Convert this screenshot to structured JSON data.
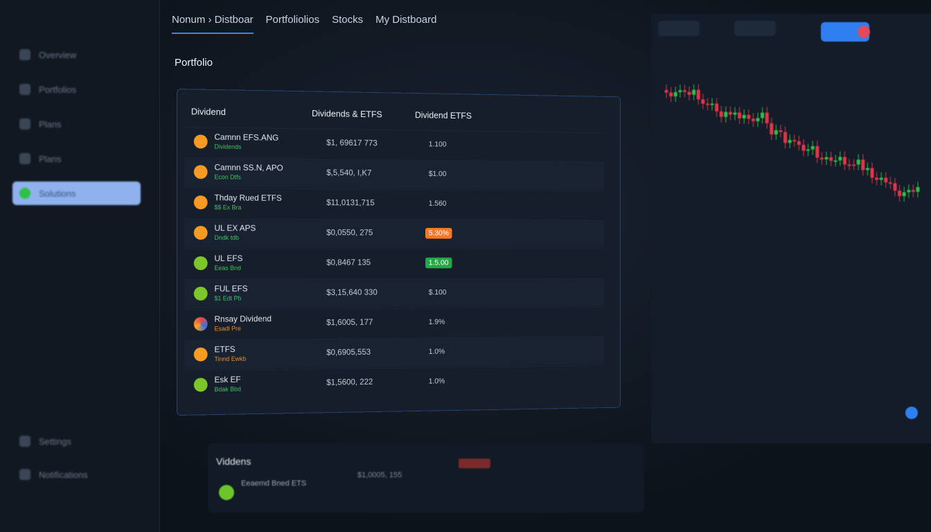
{
  "sidebar": {
    "items": [
      "Overview",
      "Portfolios",
      "Plans",
      "Plans",
      "Solutions"
    ],
    "footer": [
      "Settings",
      "Notifications"
    ]
  },
  "tabs": [
    "Nonum › Distboar",
    "Portfoliolios",
    "Stocks",
    "My Distboard"
  ],
  "header": {
    "title": "Portfolio"
  },
  "table": {
    "columns": [
      "Dividend",
      "Dividends & ETFS",
      "Dividend ETFS"
    ],
    "rows": [
      {
        "name": "Camnn EFS.ANG",
        "sub": "Dividends",
        "amount": "$1, 69617 773",
        "rate": "1.100"
      },
      {
        "name": "Camnn SS.N, APO",
        "sub": "Econ Dtfs",
        "amount": "$,5,540, I,K7",
        "rate": "$1.00"
      },
      {
        "name": "Thday Rued ETFS",
        "sub": "$$ Ex Bra",
        "amount": "$11,0131,715",
        "rate": "1.560"
      },
      {
        "name": "UL EX APS",
        "sub": "Dndk tdb",
        "amount": "$0,0550, 275",
        "rate": "5.30%"
      },
      {
        "name": "UL EFS",
        "sub": "Eeas Bnd",
        "amount": "$0,8467 135",
        "rate": "1.5.00"
      },
      {
        "name": "FUL EFS",
        "sub": "$1 Edt Pb",
        "amount": "$3,15,640 330",
        "rate": "$.100"
      },
      {
        "name": "Rnsay Dividend",
        "sub": "Esadl Pre",
        "amount": "$1,6005, 177",
        "rate": "1.9%"
      },
      {
        "name": "ETFS",
        "sub": "Tinnd Ewkb",
        "amount": "$0,6905,553",
        "rate": "1.0%"
      },
      {
        "name": "Esk EF",
        "sub": "Bdak Bbd",
        "amount": "$1,5600, 222",
        "rate": "1.0%"
      }
    ]
  },
  "footer_row": {
    "title": "Viddens",
    "name": "Eeaemd Bned ETS",
    "amount": "$1,0005, 155"
  }
}
